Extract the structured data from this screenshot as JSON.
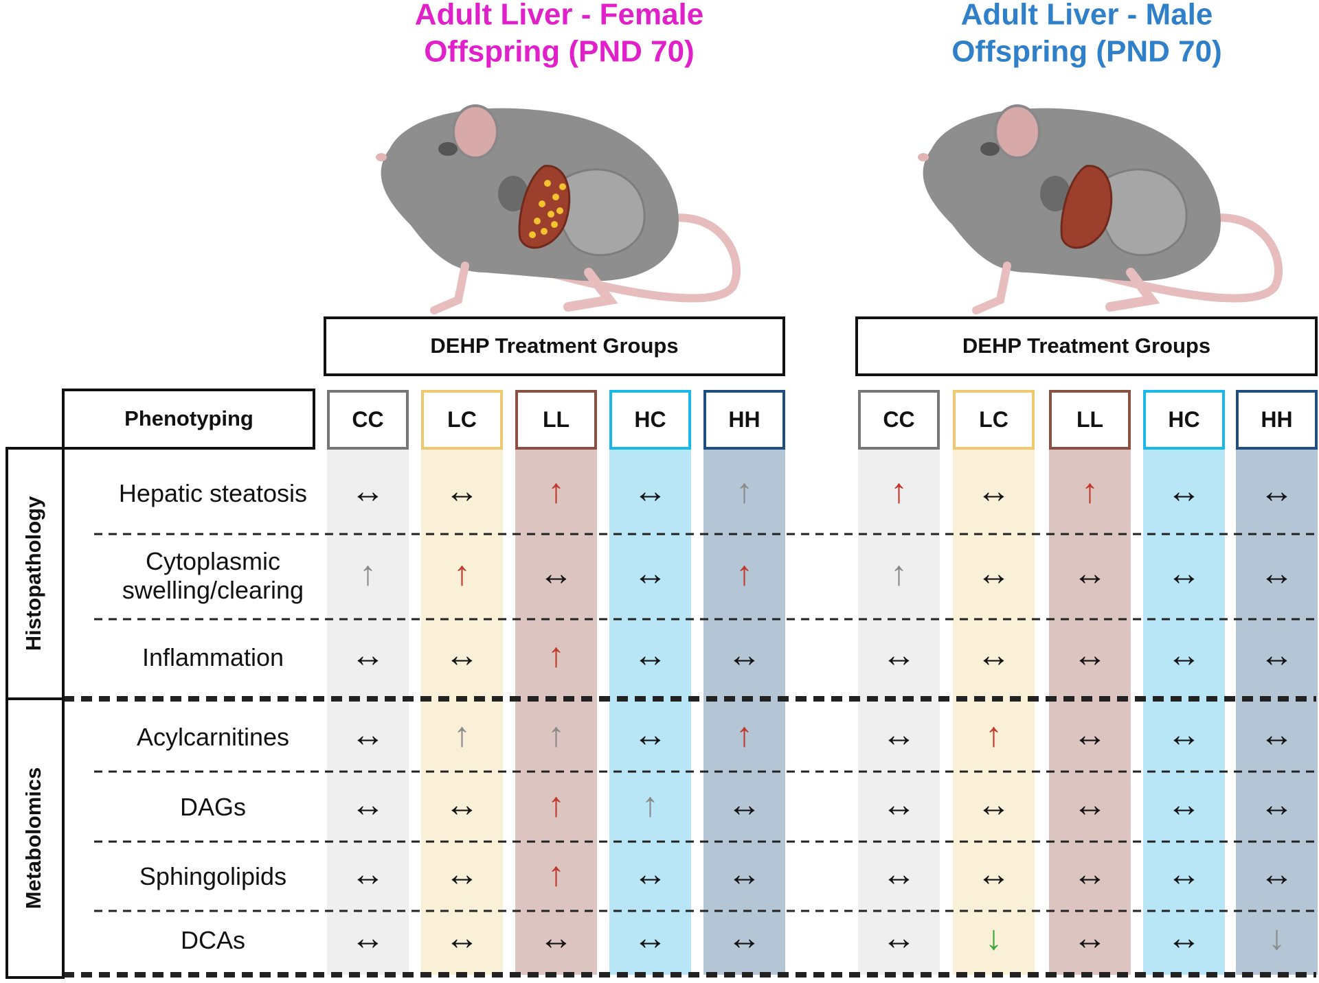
{
  "panels": [
    {
      "title_lines": [
        "Adult Liver - Female",
        "Offspring (PND 70)"
      ],
      "title_color": "#e020c8",
      "offspring": "female",
      "cells": [
        [
          {
            "symbol": "↔",
            "color": "#111111"
          },
          {
            "symbol": "↔",
            "color": "#111111"
          },
          {
            "symbol": "↑",
            "color": "#c0392b"
          },
          {
            "symbol": "↔",
            "color": "#111111"
          },
          {
            "symbol": "↑",
            "color": "#8a8a8a"
          }
        ],
        [
          {
            "symbol": "↑",
            "color": "#8a8a8a"
          },
          {
            "symbol": "↑",
            "color": "#c0392b"
          },
          {
            "symbol": "↔",
            "color": "#111111"
          },
          {
            "symbol": "↔",
            "color": "#111111"
          },
          {
            "symbol": "↑",
            "color": "#c0392b"
          }
        ],
        [
          {
            "symbol": "↔",
            "color": "#111111"
          },
          {
            "symbol": "↔",
            "color": "#111111"
          },
          {
            "symbol": "↑",
            "color": "#c0392b"
          },
          {
            "symbol": "↔",
            "color": "#111111"
          },
          {
            "symbol": "↔",
            "color": "#111111"
          }
        ],
        [
          {
            "symbol": "↔",
            "color": "#111111"
          },
          {
            "symbol": "↑",
            "color": "#8a8a8a"
          },
          {
            "symbol": "↑",
            "color": "#8a8a8a"
          },
          {
            "symbol": "↔",
            "color": "#111111"
          },
          {
            "symbol": "↑",
            "color": "#c0392b"
          }
        ],
        [
          {
            "symbol": "↔",
            "color": "#111111"
          },
          {
            "symbol": "↔",
            "color": "#111111"
          },
          {
            "symbol": "↑",
            "color": "#c0392b"
          },
          {
            "symbol": "↑",
            "color": "#8a8a8a"
          },
          {
            "symbol": "↔",
            "color": "#111111"
          }
        ],
        [
          {
            "symbol": "↔",
            "color": "#111111"
          },
          {
            "symbol": "↔",
            "color": "#111111"
          },
          {
            "symbol": "↑",
            "color": "#c0392b"
          },
          {
            "symbol": "↔",
            "color": "#111111"
          },
          {
            "symbol": "↔",
            "color": "#111111"
          }
        ],
        [
          {
            "symbol": "↔",
            "color": "#111111"
          },
          {
            "symbol": "↔",
            "color": "#111111"
          },
          {
            "symbol": "↔",
            "color": "#111111"
          },
          {
            "symbol": "↔",
            "color": "#111111"
          },
          {
            "symbol": "↔",
            "color": "#111111"
          }
        ]
      ]
    },
    {
      "title_lines": [
        "Adult Liver - Male",
        "Offspring (PND 70)"
      ],
      "title_color": "#2f80c8",
      "offspring": "male",
      "cells": [
        [
          {
            "symbol": "↑",
            "color": "#c0392b"
          },
          {
            "symbol": "↔",
            "color": "#111111"
          },
          {
            "symbol": "↑",
            "color": "#c0392b"
          },
          {
            "symbol": "↔",
            "color": "#111111"
          },
          {
            "symbol": "↔",
            "color": "#111111"
          }
        ],
        [
          {
            "symbol": "↑",
            "color": "#8a8a8a"
          },
          {
            "symbol": "↔",
            "color": "#111111"
          },
          {
            "symbol": "↔",
            "color": "#111111"
          },
          {
            "symbol": "↔",
            "color": "#111111"
          },
          {
            "symbol": "↔",
            "color": "#111111"
          }
        ],
        [
          {
            "symbol": "↔",
            "color": "#111111"
          },
          {
            "symbol": "↔",
            "color": "#111111"
          },
          {
            "symbol": "↔",
            "color": "#111111"
          },
          {
            "symbol": "↔",
            "color": "#111111"
          },
          {
            "symbol": "↔",
            "color": "#111111"
          }
        ],
        [
          {
            "symbol": "↔",
            "color": "#111111"
          },
          {
            "symbol": "↑",
            "color": "#c0392b"
          },
          {
            "symbol": "↔",
            "color": "#111111"
          },
          {
            "symbol": "↔",
            "color": "#111111"
          },
          {
            "symbol": "↔",
            "color": "#111111"
          }
        ],
        [
          {
            "symbol": "↔",
            "color": "#111111"
          },
          {
            "symbol": "↔",
            "color": "#111111"
          },
          {
            "symbol": "↔",
            "color": "#111111"
          },
          {
            "symbol": "↔",
            "color": "#111111"
          },
          {
            "symbol": "↔",
            "color": "#111111"
          }
        ],
        [
          {
            "symbol": "↔",
            "color": "#111111"
          },
          {
            "symbol": "↔",
            "color": "#111111"
          },
          {
            "symbol": "↔",
            "color": "#111111"
          },
          {
            "symbol": "↔",
            "color": "#111111"
          },
          {
            "symbol": "↔",
            "color": "#111111"
          }
        ],
        [
          {
            "symbol": "↔",
            "color": "#111111"
          },
          {
            "symbol": "↓",
            "color": "#3aa835"
          },
          {
            "symbol": "↔",
            "color": "#111111"
          },
          {
            "symbol": "↔",
            "color": "#111111"
          },
          {
            "symbol": "↓",
            "color": "#8a8a8a"
          }
        ]
      ]
    }
  ],
  "treatment_header": "DEHP Treatment Groups",
  "phenotyping_header": "Phenotyping",
  "groups": [
    {
      "name": "CC",
      "border": "#777777",
      "fill": "#efefef"
    },
    {
      "name": "LC",
      "border": "#f0c870",
      "fill": "#faf0d8"
    },
    {
      "name": "LL",
      "border": "#8b5040",
      "fill": "#dcc5c0"
    },
    {
      "name": "HC",
      "border": "#1ab8e8",
      "fill": "#b8e6f7"
    },
    {
      "name": "HH",
      "border": "#1f4f80",
      "fill": "#b4c6d6"
    }
  ],
  "sections": [
    {
      "name": "Histopathology",
      "rows": [
        "Hepatic steatosis",
        "Cytoplasmic swelling/clearing",
        "Inflammation"
      ]
    },
    {
      "name": "Metabolomics",
      "rows": [
        "Acylcarnitines",
        "DAGs",
        "Sphingolipids",
        "DCAs"
      ]
    }
  ]
}
